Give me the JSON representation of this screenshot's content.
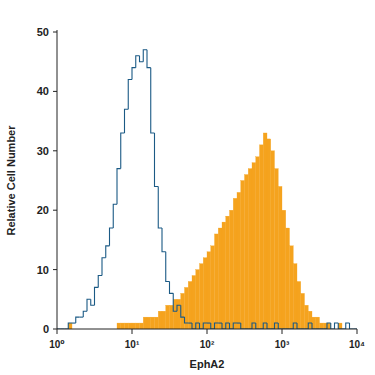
{
  "chart_data": {
    "type": "histogram",
    "x_label": "EphA2",
    "y_label": "Relative Cell Number",
    "log": "x",
    "grid": false,
    "xlim": [
      1,
      10000
    ],
    "ylim": [
      0,
      50
    ],
    "xticks": [
      {
        "value": 1,
        "label": "10⁰"
      },
      {
        "value": 10,
        "label": "10¹"
      },
      {
        "value": 100,
        "label": "10²"
      },
      {
        "value": 1000,
        "label": "10³"
      },
      {
        "value": 10000,
        "label": "10⁴"
      }
    ],
    "yticks": [
      0,
      10,
      20,
      30,
      40,
      50
    ],
    "bins": [
      1,
      1.122,
      1.259,
      1.413,
      1.585,
      1.778,
      1.995,
      2.239,
      2.512,
      2.818,
      3.162,
      3.548,
      3.981,
      4.467,
      5.012,
      5.623,
      6.31,
      7.079,
      7.943,
      8.913,
      10,
      11.22,
      12.59,
      14.13,
      15.85,
      17.78,
      19.95,
      22.39,
      25.12,
      28.18,
      31.62,
      35.48,
      39.81,
      44.67,
      50.12,
      56.23,
      63.1,
      70.79,
      79.43,
      89.13,
      100,
      112.2,
      125.9,
      141.3,
      158.5,
      177.8,
      199.5,
      223.9,
      251.2,
      281.8,
      316.2,
      354.8,
      398.1,
      446.7,
      501.2,
      562.3,
      631,
      707.9,
      794.3,
      891.3,
      1000,
      1122,
      1259,
      1413,
      1585,
      1778,
      1995,
      2239,
      2512,
      2818,
      3162,
      3548,
      3981,
      4467,
      5012,
      5623,
      6310,
      7079,
      7943,
      8913,
      10000
    ],
    "series": [
      {
        "type": "bar",
        "color": "#f5a31e",
        "values": [
          0,
          0,
          0,
          1,
          0,
          0,
          0,
          0,
          0,
          0,
          0,
          0,
          0,
          0,
          0,
          0,
          1,
          1,
          1,
          1,
          1,
          1,
          1,
          2,
          2,
          2,
          2,
          3,
          3,
          4,
          4,
          5,
          5,
          6,
          7,
          8,
          9,
          10,
          11,
          12,
          13,
          14,
          16,
          17,
          18,
          19,
          20,
          22,
          23,
          25,
          26,
          27,
          28,
          29,
          31,
          33,
          32,
          30,
          27,
          24,
          20,
          17,
          14,
          11,
          8,
          6,
          4,
          3,
          2,
          2,
          1,
          1,
          1,
          0,
          0,
          1,
          0,
          0,
          0,
          0
        ]
      },
      {
        "type": "step",
        "color": "#1b5a85",
        "values": [
          0,
          0,
          0,
          1,
          1,
          2,
          2,
          3,
          5,
          4,
          7,
          9,
          12,
          14,
          17,
          21,
          27,
          33,
          37,
          42,
          44,
          46,
          45,
          47,
          44,
          33,
          24,
          17,
          13,
          8,
          6,
          3,
          4,
          2,
          1,
          1,
          0,
          1,
          0,
          1,
          1,
          0,
          1,
          1,
          0,
          1,
          0,
          1,
          1,
          0,
          0,
          0,
          1,
          0,
          0,
          1,
          0,
          0,
          1,
          0,
          0,
          0,
          0,
          1,
          0,
          0,
          0,
          1,
          0,
          0,
          0,
          0,
          1,
          0,
          1,
          0,
          0,
          1,
          0,
          0
        ]
      }
    ]
  }
}
